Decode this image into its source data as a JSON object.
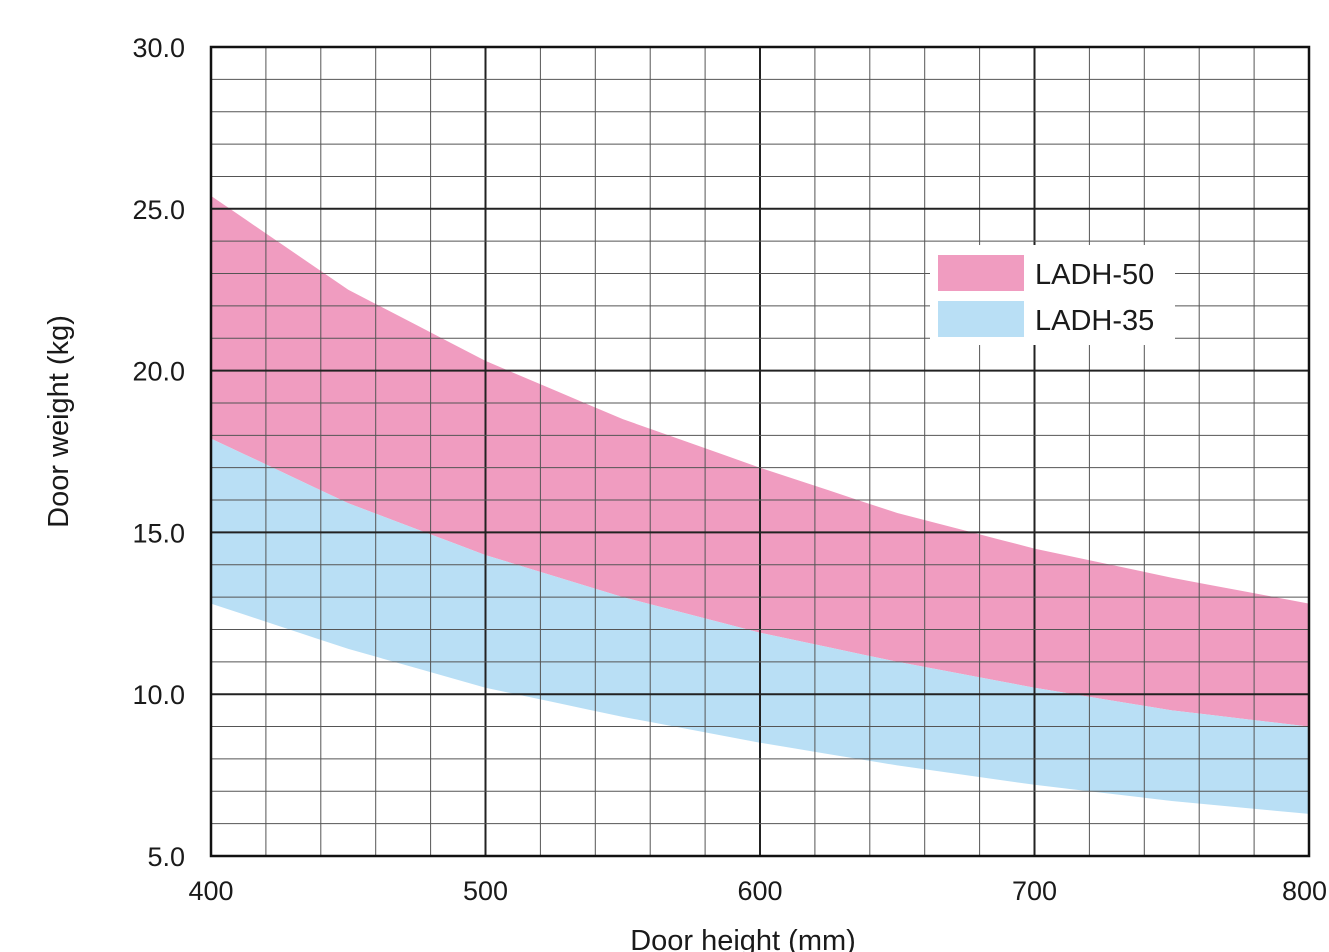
{
  "chart_data": {
    "type": "area",
    "xlabel": "Door height (mm)",
    "ylabel": "Door weight (kg)",
    "xlim": [
      400,
      800
    ],
    "ylim": [
      5,
      30
    ],
    "x_ticks": [
      "400",
      "500",
      "600",
      "700",
      "800"
    ],
    "y_ticks": [
      "5.0",
      "10.0",
      "15.0",
      "20.0",
      "25.0",
      "30.0"
    ],
    "grid": true,
    "legend_position": "top-right",
    "series": [
      {
        "name": "LADH-50",
        "color": "#f09cc0",
        "x": [
          400,
          450,
          500,
          550,
          600,
          650,
          700,
          750,
          800
        ],
        "upper": [
          25.4,
          22.5,
          20.3,
          18.5,
          17.0,
          15.6,
          14.5,
          13.6,
          12.8
        ],
        "lower": [
          17.9,
          15.9,
          14.3,
          13.0,
          11.9,
          11.0,
          10.2,
          9.5,
          9.0
        ]
      },
      {
        "name": "LADH-35",
        "color": "#b9dff5",
        "x": [
          400,
          450,
          500,
          550,
          600,
          650,
          700,
          750,
          800
        ],
        "upper": [
          17.9,
          15.9,
          14.3,
          13.0,
          11.9,
          11.0,
          10.2,
          9.5,
          9.0
        ],
        "lower": [
          12.8,
          11.4,
          10.2,
          9.3,
          8.5,
          7.8,
          7.2,
          6.7,
          6.3
        ]
      }
    ]
  }
}
